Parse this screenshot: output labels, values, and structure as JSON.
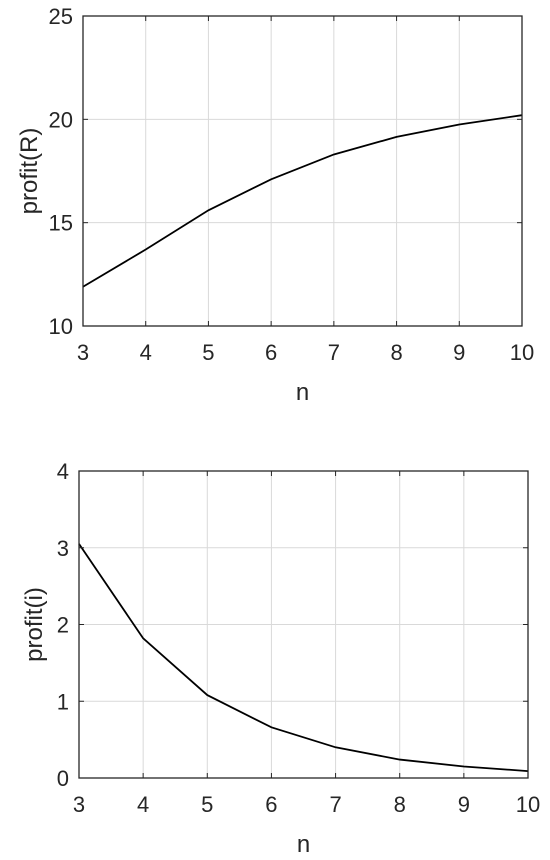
{
  "chart_data": [
    {
      "type": "line",
      "xlabel": "n",
      "ylabel": "profit(R)",
      "xlim": [
        3,
        10
      ],
      "ylim": [
        10,
        25
      ],
      "xticks": [
        "3",
        "4",
        "5",
        "6",
        "7",
        "8",
        "9",
        "10"
      ],
      "yticks": [
        "10",
        "15",
        "20",
        "25"
      ],
      "grid": true,
      "series": [
        {
          "x": [
            3,
            4,
            5,
            6,
            7,
            8,
            9,
            10
          ],
          "y": [
            11.9,
            13.7,
            15.6,
            17.1,
            18.3,
            19.15,
            19.75,
            20.2
          ]
        }
      ]
    },
    {
      "type": "line",
      "xlabel": "n",
      "ylabel": "profit(i)",
      "xlim": [
        3,
        10
      ],
      "ylim": [
        0,
        4
      ],
      "xticks": [
        "3",
        "4",
        "5",
        "6",
        "7",
        "8",
        "9",
        "10"
      ],
      "yticks": [
        "0",
        "1",
        "2",
        "3",
        "4"
      ],
      "grid": true,
      "series": [
        {
          "x": [
            3,
            4,
            5,
            6,
            7,
            8,
            9,
            10
          ],
          "y": [
            3.05,
            1.82,
            1.08,
            0.66,
            0.4,
            0.24,
            0.15,
            0.09
          ]
        }
      ]
    }
  ]
}
